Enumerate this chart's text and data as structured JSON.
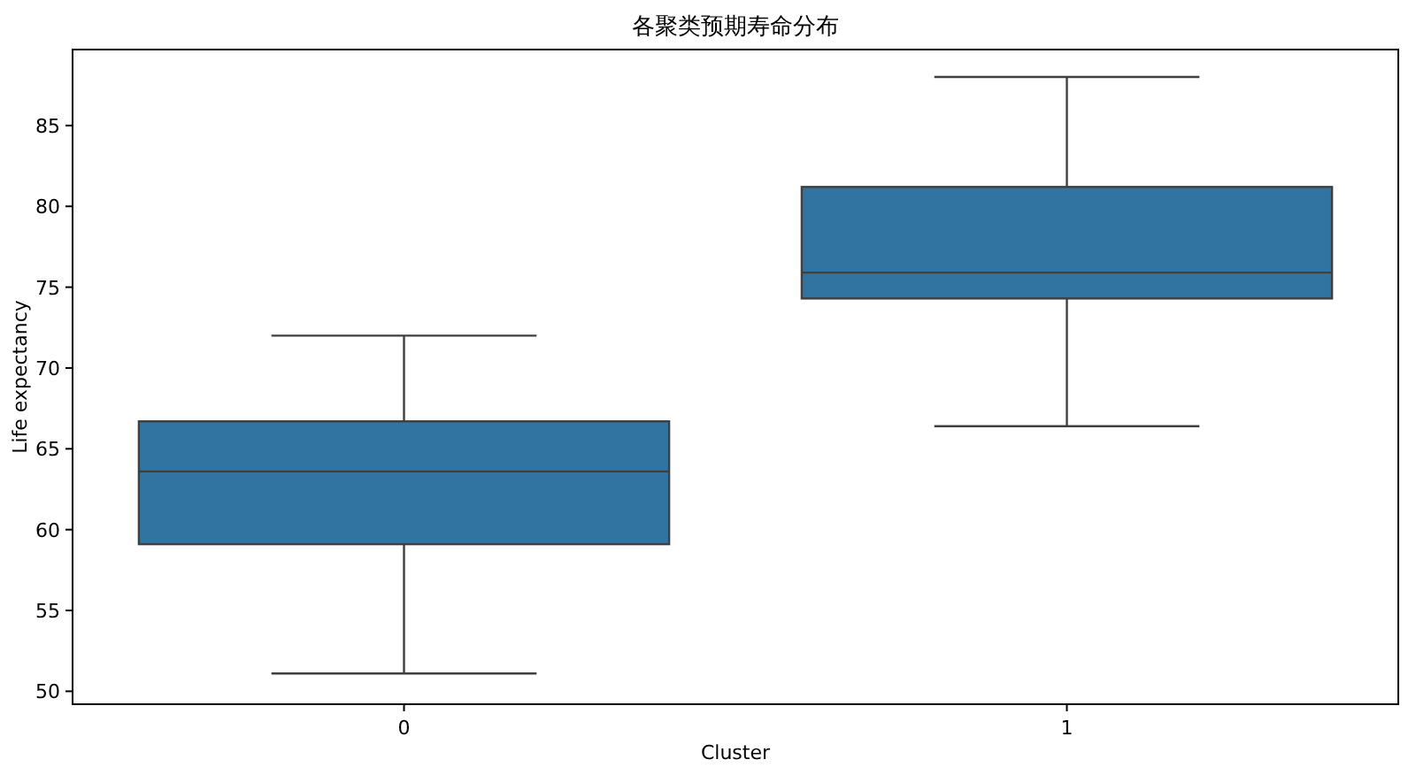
{
  "chart_data": {
    "type": "box",
    "title": "各聚类预期寿命分布",
    "xlabel": "Cluster",
    "ylabel": "Life expectancy",
    "categories": [
      "0",
      "1"
    ],
    "series": [
      {
        "color": "#3274a1",
        "boxes": [
          {
            "low": 51.1,
            "q1": 59.1,
            "median": 63.6,
            "q3": 66.7,
            "high": 72.0
          },
          {
            "low": 66.4,
            "q1": 74.3,
            "median": 75.9,
            "q3": 81.2,
            "high": 88.0
          }
        ]
      }
    ],
    "ylim": [
      49.2,
      89.7
    ],
    "yticks": [
      50,
      55,
      60,
      65,
      70,
      75,
      80,
      85
    ],
    "grid": false
  }
}
